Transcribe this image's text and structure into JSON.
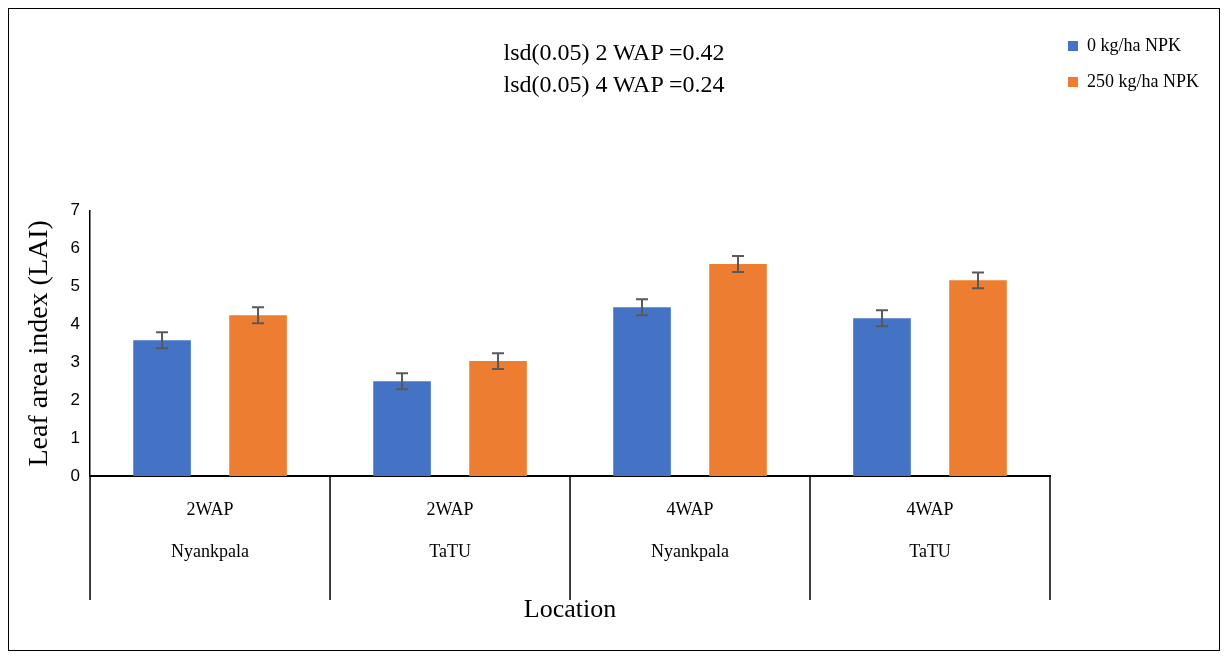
{
  "chart_data": {
    "type": "bar",
    "title": "lsd(0.05) 2 WAP =0.42",
    "subtitle": "lsd(0.05) 4 WAP =0.24",
    "xlabel": "Location",
    "ylabel": "Leaf area index (LAI)",
    "categories": [
      "2WAP\nNyankpala",
      "2WAP\nTaTU",
      "4WAP\nNyankpala",
      "4WAP\nTaTU"
    ],
    "series": [
      {
        "name": "0 kg/ha NPK",
        "color": "#4472c4",
        "values": [
          3.58,
          2.5,
          4.45,
          4.16
        ],
        "errors": [
          0.21,
          0.21,
          0.21,
          0.21
        ]
      },
      {
        "name": "250 kg/ha NPK",
        "color": "#ed7d31",
        "values": [
          4.24,
          3.03,
          5.59,
          5.16
        ],
        "errors": [
          0.21,
          0.21,
          0.21,
          0.21
        ]
      }
    ],
    "ylim": [
      0,
      7
    ],
    "yticks": [
      0,
      1,
      2,
      3,
      4,
      5,
      6,
      7
    ],
    "grid": false,
    "legend": "right"
  }
}
